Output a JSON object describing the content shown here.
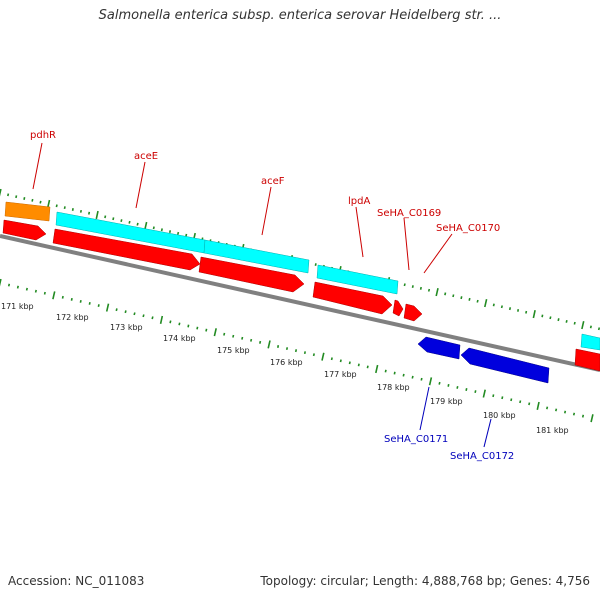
{
  "title": "Salmonella enterica subsp. enterica serovar Heidelberg str. ...",
  "footer": {
    "accession": "Accession: NC_011083",
    "summary": "Topology: circular; Length: 4,888,768 bp; Genes: 4,756"
  },
  "colors": {
    "backbone": "#808080",
    "forward_cds": "#ff0000",
    "forward_feature": "#00ffff",
    "misc_feature": "#ff8c00",
    "reverse_cds": "#0000dd",
    "ticks": "#228b22",
    "forward_label": "#cc0000",
    "reverse_label": "#0000bb"
  },
  "kbp_labels": [
    "171 kbp",
    "172 kbp",
    "173 kbp",
    "174 kbp",
    "175 kbp",
    "176 kbp",
    "177 kbp",
    "178 kbp",
    "179 kbp",
    "180 kbp",
    "181 kbp"
  ],
  "forward_genes": [
    "pdhR",
    "aceE",
    "aceF",
    "lpdA",
    "SeHA_C0169",
    "SeHA_C0170"
  ],
  "reverse_genes": [
    "SeHA_C0171",
    "SeHA_C0172"
  ]
}
